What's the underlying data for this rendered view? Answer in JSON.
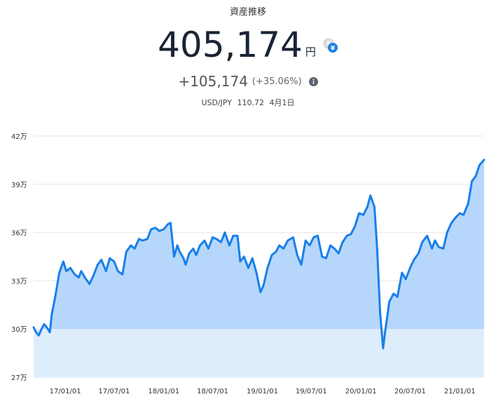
{
  "header": {
    "title": "資産推移",
    "value": "405,174",
    "unit": "円",
    "change": "+105,174",
    "change_pct": "(+35.06%)",
    "rate_pair": "USD/JPY",
    "rate_value": "110.72",
    "rate_date": "4月1日",
    "currency_icon": "currency-exchange-icon",
    "info_icon": "info-icon"
  },
  "colors": {
    "line": "#1a7fe8",
    "area_above": "#b6d7fb",
    "area_below": "#deedfc",
    "grid": "#e6e6e6"
  },
  "chart_data": {
    "type": "area",
    "title": "",
    "xlabel": "",
    "ylabel": "",
    "baseline": 300000,
    "ylim": [
      270000,
      420000
    ],
    "xlim": [
      "2016-09-06",
      "2021-04-01"
    ],
    "y_ticks": [
      {
        "value": 270000,
        "label": "27万"
      },
      {
        "value": 300000,
        "label": "30万"
      },
      {
        "value": 330000,
        "label": "33万"
      },
      {
        "value": 360000,
        "label": "36万"
      },
      {
        "value": 390000,
        "label": "39万"
      },
      {
        "value": 420000,
        "label": "42万"
      }
    ],
    "x_ticks": [
      {
        "value": "2017-01-01",
        "label": "17/01/01"
      },
      {
        "value": "2017-07-01",
        "label": "17/07/01"
      },
      {
        "value": "2018-01-01",
        "label": "18/01/01"
      },
      {
        "value": "2018-07-01",
        "label": "18/07/01"
      },
      {
        "value": "2019-01-01",
        "label": "19/01/01"
      },
      {
        "value": "2019-07-01",
        "label": "19/07/01"
      },
      {
        "value": "2020-01-01",
        "label": "20/01/01"
      },
      {
        "value": "2020-07-01",
        "label": "20/07/01"
      },
      {
        "value": "2021-01-01",
        "label": "21/01/01"
      }
    ],
    "series": [
      {
        "x": [
          "2016-09-06",
          "2016-09-15",
          "2016-09-25",
          "2016-10-05",
          "2016-10-15",
          "2016-10-25",
          "2016-11-05",
          "2016-11-12",
          "2016-11-25",
          "2016-12-10",
          "2016-12-25",
          "2017-01-05",
          "2017-01-20",
          "2017-02-05",
          "2017-02-20",
          "2017-03-01",
          "2017-03-15",
          "2017-04-01",
          "2017-04-15",
          "2017-05-01",
          "2017-05-15",
          "2017-06-01",
          "2017-06-15",
          "2017-07-01",
          "2017-07-15",
          "2017-08-01",
          "2017-08-15",
          "2017-09-01",
          "2017-09-15",
          "2017-10-01",
          "2017-10-15",
          "2017-11-01",
          "2017-11-15",
          "2017-12-01",
          "2017-12-15",
          "2018-01-01",
          "2018-01-15",
          "2018-01-26",
          "2018-02-08",
          "2018-02-20",
          "2018-03-01",
          "2018-03-15",
          "2018-03-23",
          "2018-04-05",
          "2018-04-20",
          "2018-05-01",
          "2018-05-15",
          "2018-06-01",
          "2018-06-15",
          "2018-07-01",
          "2018-07-15",
          "2018-08-01",
          "2018-08-15",
          "2018-09-01",
          "2018-09-15",
          "2018-10-01",
          "2018-10-11",
          "2018-10-25",
          "2018-11-10",
          "2018-11-25",
          "2018-12-10",
          "2018-12-25",
          "2019-01-05",
          "2019-01-20",
          "2019-02-05",
          "2019-02-20",
          "2019-03-05",
          "2019-03-20",
          "2019-04-05",
          "2019-04-25",
          "2019-05-10",
          "2019-05-25",
          "2019-06-10",
          "2019-06-25",
          "2019-07-10",
          "2019-07-25",
          "2019-08-10",
          "2019-08-25",
          "2019-09-10",
          "2019-09-25",
          "2019-10-10",
          "2019-10-25",
          "2019-11-10",
          "2019-11-25",
          "2019-12-10",
          "2019-12-25",
          "2020-01-10",
          "2020-01-25",
          "2020-02-05",
          "2020-02-20",
          "2020-03-01",
          "2020-03-12",
          "2020-03-23",
          "2020-04-01",
          "2020-04-15",
          "2020-05-01",
          "2020-05-15",
          "2020-06-01",
          "2020-06-15",
          "2020-07-01",
          "2020-07-15",
          "2020-08-01",
          "2020-08-15",
          "2020-09-02",
          "2020-09-20",
          "2020-10-01",
          "2020-10-15",
          "2020-11-01",
          "2020-11-15",
          "2020-12-01",
          "2020-12-15",
          "2021-01-01",
          "2021-01-15",
          "2021-02-01",
          "2021-02-15",
          "2021-03-01",
          "2021-03-15",
          "2021-04-01"
        ],
        "y": [
          301000,
          298000,
          296000,
          300000,
          303000,
          301000,
          298000,
          309000,
          320000,
          335000,
          342000,
          336000,
          338000,
          334000,
          332000,
          336000,
          332000,
          328000,
          333000,
          340000,
          343000,
          336000,
          344000,
          342000,
          336000,
          334000,
          348000,
          352000,
          350000,
          356000,
          355000,
          356000,
          362000,
          363000,
          361000,
          362000,
          365000,
          366000,
          345000,
          352000,
          348000,
          344000,
          340000,
          347000,
          350000,
          346000,
          352000,
          355000,
          350000,
          357000,
          356000,
          354000,
          360000,
          352000,
          358000,
          358000,
          342000,
          345000,
          338000,
          344000,
          335000,
          323000,
          327000,
          338000,
          346000,
          348000,
          352000,
          350000,
          355000,
          357000,
          346000,
          340000,
          355000,
          352000,
          357000,
          358000,
          345000,
          344000,
          352000,
          350000,
          347000,
          354000,
          358000,
          359000,
          364000,
          372000,
          371000,
          376000,
          383000,
          376000,
          350000,
          310000,
          288000,
          300000,
          317000,
          322000,
          320000,
          335000,
          331000,
          338000,
          343000,
          347000,
          354000,
          358000,
          350000,
          355000,
          351000,
          350000,
          360000,
          366000,
          369000,
          372000,
          371000,
          378000,
          392000,
          395000,
          402000,
          405174
        ]
      }
    ]
  }
}
